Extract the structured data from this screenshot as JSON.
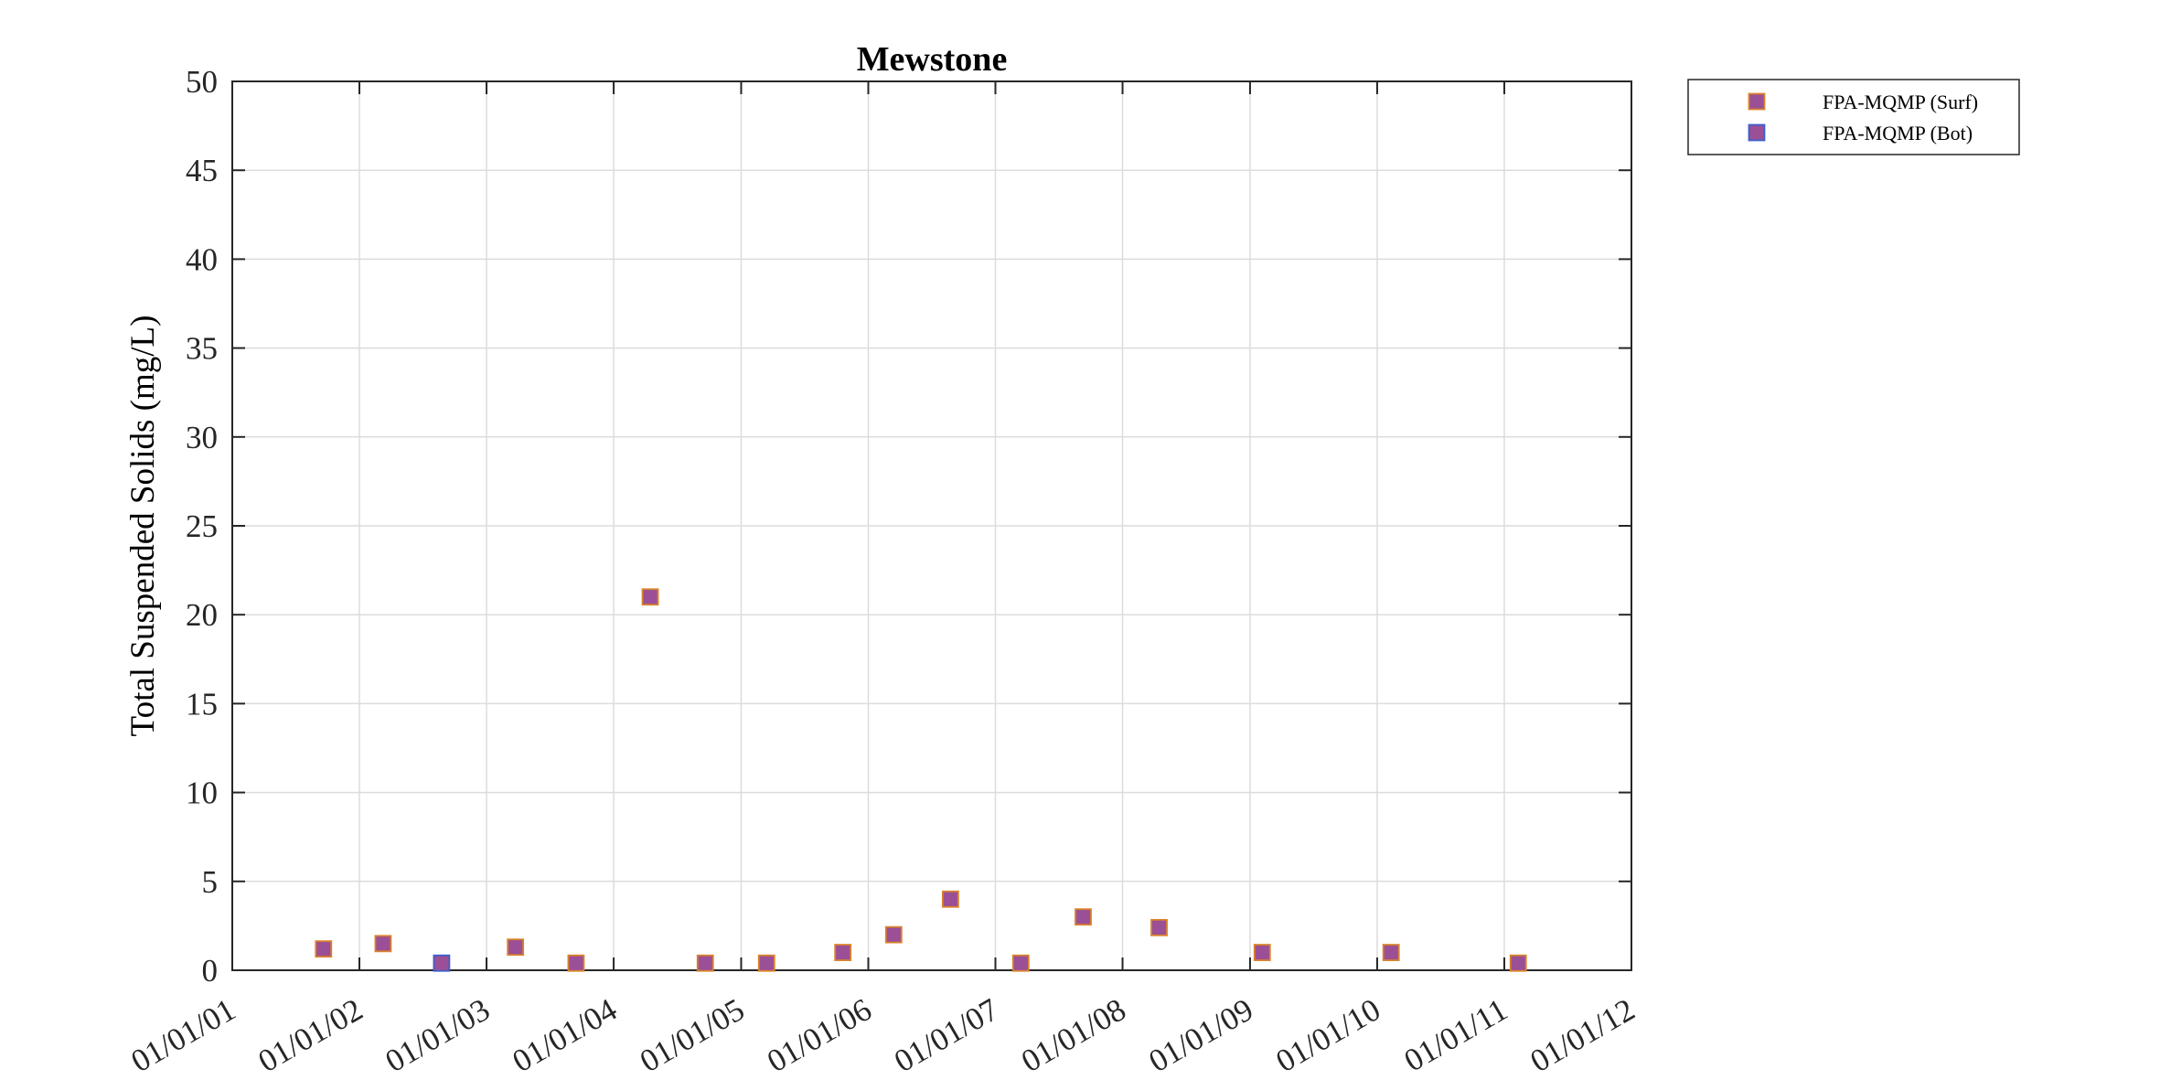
{
  "chart_data": {
    "type": "scatter",
    "title": "Mewstone",
    "xlabel": "",
    "ylabel": "Total Suspended Solids (mg/L)",
    "xlim": [
      "2001-01-01",
      "2012-01-01"
    ],
    "ylim": [
      0,
      50
    ],
    "yticks": [
      0,
      5,
      10,
      15,
      20,
      25,
      30,
      35,
      40,
      45,
      50
    ],
    "xticks": [
      "2001-01-01",
      "2002-01-01",
      "2003-01-01",
      "2004-01-01",
      "2005-01-01",
      "2006-01-01",
      "2007-01-01",
      "2008-01-01",
      "2009-01-01",
      "2010-01-01",
      "2011-01-01",
      "2012-01-01"
    ],
    "xtick_labels": [
      "01/01/01",
      "01/01/02",
      "01/01/03",
      "01/01/04",
      "01/01/05",
      "01/01/06",
      "01/01/07",
      "01/01/08",
      "01/01/09",
      "01/01/10",
      "01/01/11",
      "01/01/12"
    ],
    "grid": true,
    "legend_position": "outside-top-right",
    "series": [
      {
        "name": "FPA-MQMP (Surf)",
        "marker": "square",
        "face_color": "#9b4f96",
        "edge_color": "#d9822b",
        "points": [
          {
            "x": "2001-09-20",
            "y": 1.2
          },
          {
            "x": "2002-03-10",
            "y": 1.5
          },
          {
            "x": "2003-03-25",
            "y": 1.3
          },
          {
            "x": "2003-09-15",
            "y": 0.4
          },
          {
            "x": "2004-04-15",
            "y": 21
          },
          {
            "x": "2004-09-20",
            "y": 0.4
          },
          {
            "x": "2005-03-15",
            "y": 0.4
          },
          {
            "x": "2005-10-20",
            "y": 1.0
          },
          {
            "x": "2006-03-15",
            "y": 2.0
          },
          {
            "x": "2006-08-25",
            "y": 4.0
          },
          {
            "x": "2007-03-15",
            "y": 0.4
          },
          {
            "x": "2007-09-10",
            "y": 3.0
          },
          {
            "x": "2008-04-15",
            "y": 2.4
          },
          {
            "x": "2009-02-05",
            "y": 1.0
          },
          {
            "x": "2010-02-10",
            "y": 1.0
          },
          {
            "x": "2011-02-10",
            "y": 0.4
          }
        ]
      },
      {
        "name": "FPA-MQMP (Bot)",
        "marker": "square",
        "face_color": "#9b4f96",
        "edge_color": "#3a5fcd",
        "points": [
          {
            "x": "2002-08-25",
            "y": 0.4
          }
        ]
      }
    ]
  }
}
